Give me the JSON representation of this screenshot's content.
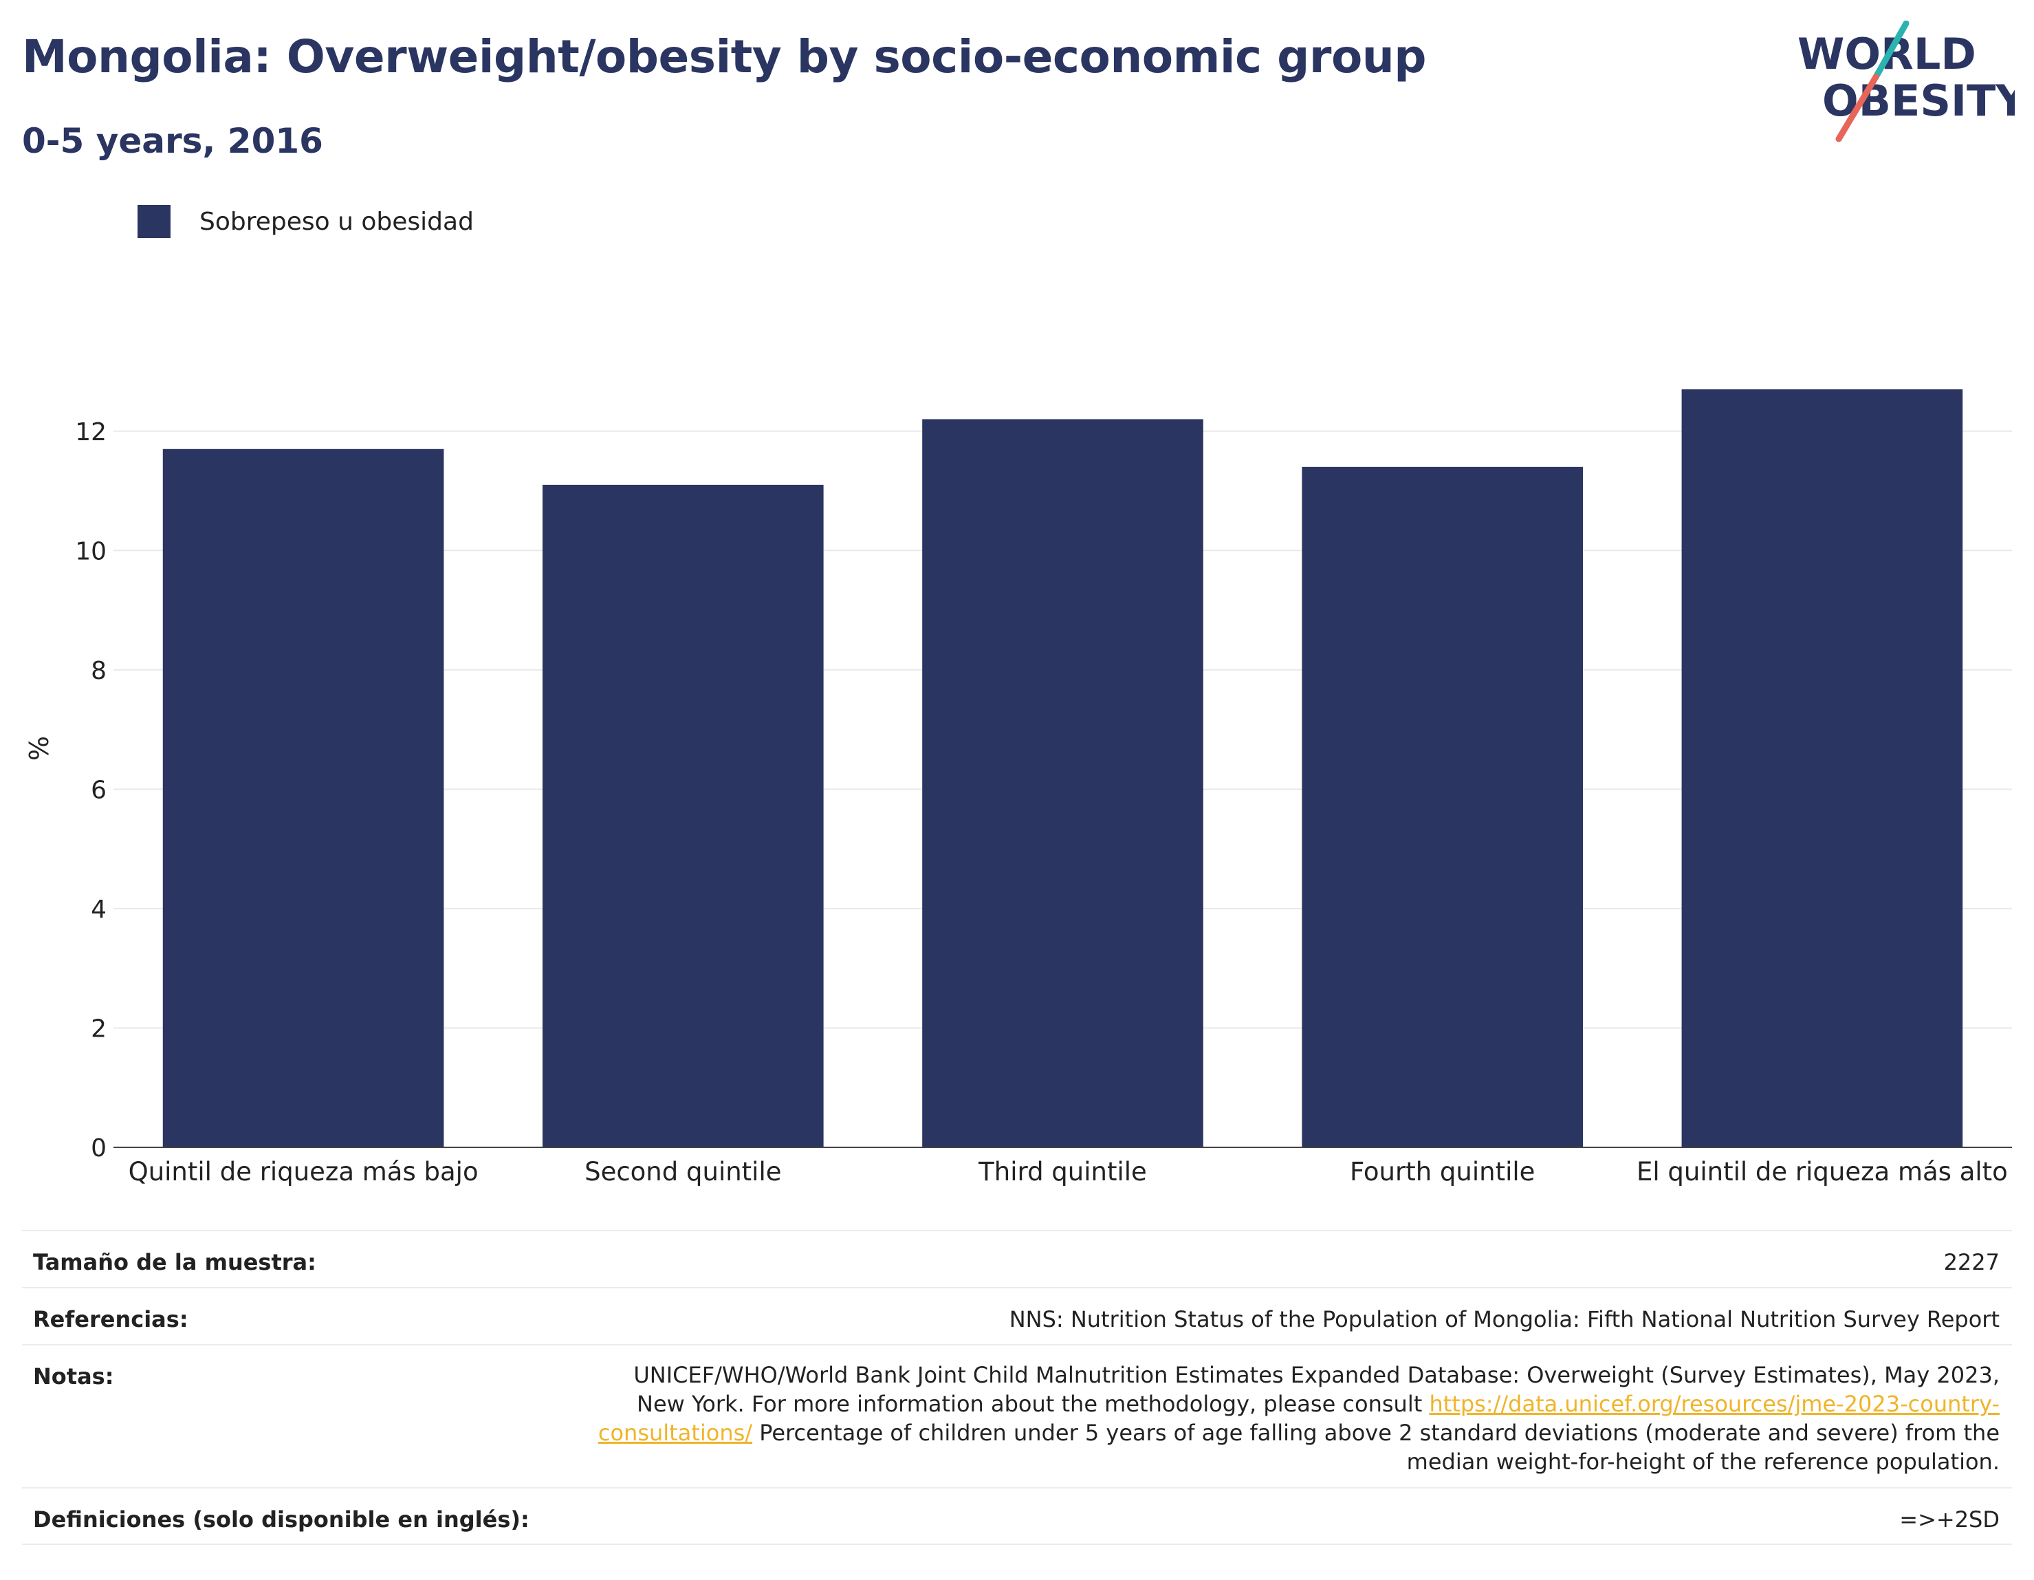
{
  "header": {
    "title": "Mongolia: Overweight/obesity by socio-economic group",
    "subtitle": "0-5 years, 2016"
  },
  "logo": {
    "line1": "WORLD",
    "line2": "OBESITY",
    "colors": {
      "text": "#2a3561",
      "slash_top": "#2bb3b1",
      "slash_bottom": "#e8655a"
    }
  },
  "legend": {
    "label": "Sobrepeso u obesidad",
    "color": "#2a3561"
  },
  "chart_data": {
    "type": "bar",
    "categories": [
      "Quintil de riqueza más bajo",
      "Second quintile",
      "Third quintile",
      "Fourth quintile",
      "El quintil de riqueza más alto"
    ],
    "series": [
      {
        "name": "Sobrepeso u obesidad",
        "values": [
          11.7,
          11.1,
          12.2,
          11.4,
          12.7
        ],
        "color": "#2a3561"
      }
    ],
    "ylabel": "%",
    "xlabel": "",
    "ylim": [
      0,
      13
    ],
    "yticks": [
      0,
      2,
      4,
      6,
      8,
      10,
      12
    ],
    "grid": true,
    "legend_position": "top-left"
  },
  "table": {
    "sample_label": "Tamaño de la muestra:",
    "sample_value": "2227",
    "references_label": "Referencias:",
    "references_value": "NNS: Nutrition Status of the Population of Mongolia: Fifth National Nutrition Survey Report",
    "notes_label": "Notas:",
    "notes_text_1": "UNICEF/WHO/World Bank Joint Child Malnutrition Estimates Expanded Database: Overweight (Survey Estimates), May 2023, New York. For more information about the methodology, please consult ",
    "notes_link": "https://data.unicef.org/resources/jme-2023-country-consultations/",
    "notes_text_2": " Percentage of children under 5 years of age falling above 2 standard deviations (moderate and severe) from the median weight-for-height of the reference population.",
    "definitions_label": "Definiciones (solo disponible en inglés):",
    "definitions_value": "=>+2SD"
  }
}
